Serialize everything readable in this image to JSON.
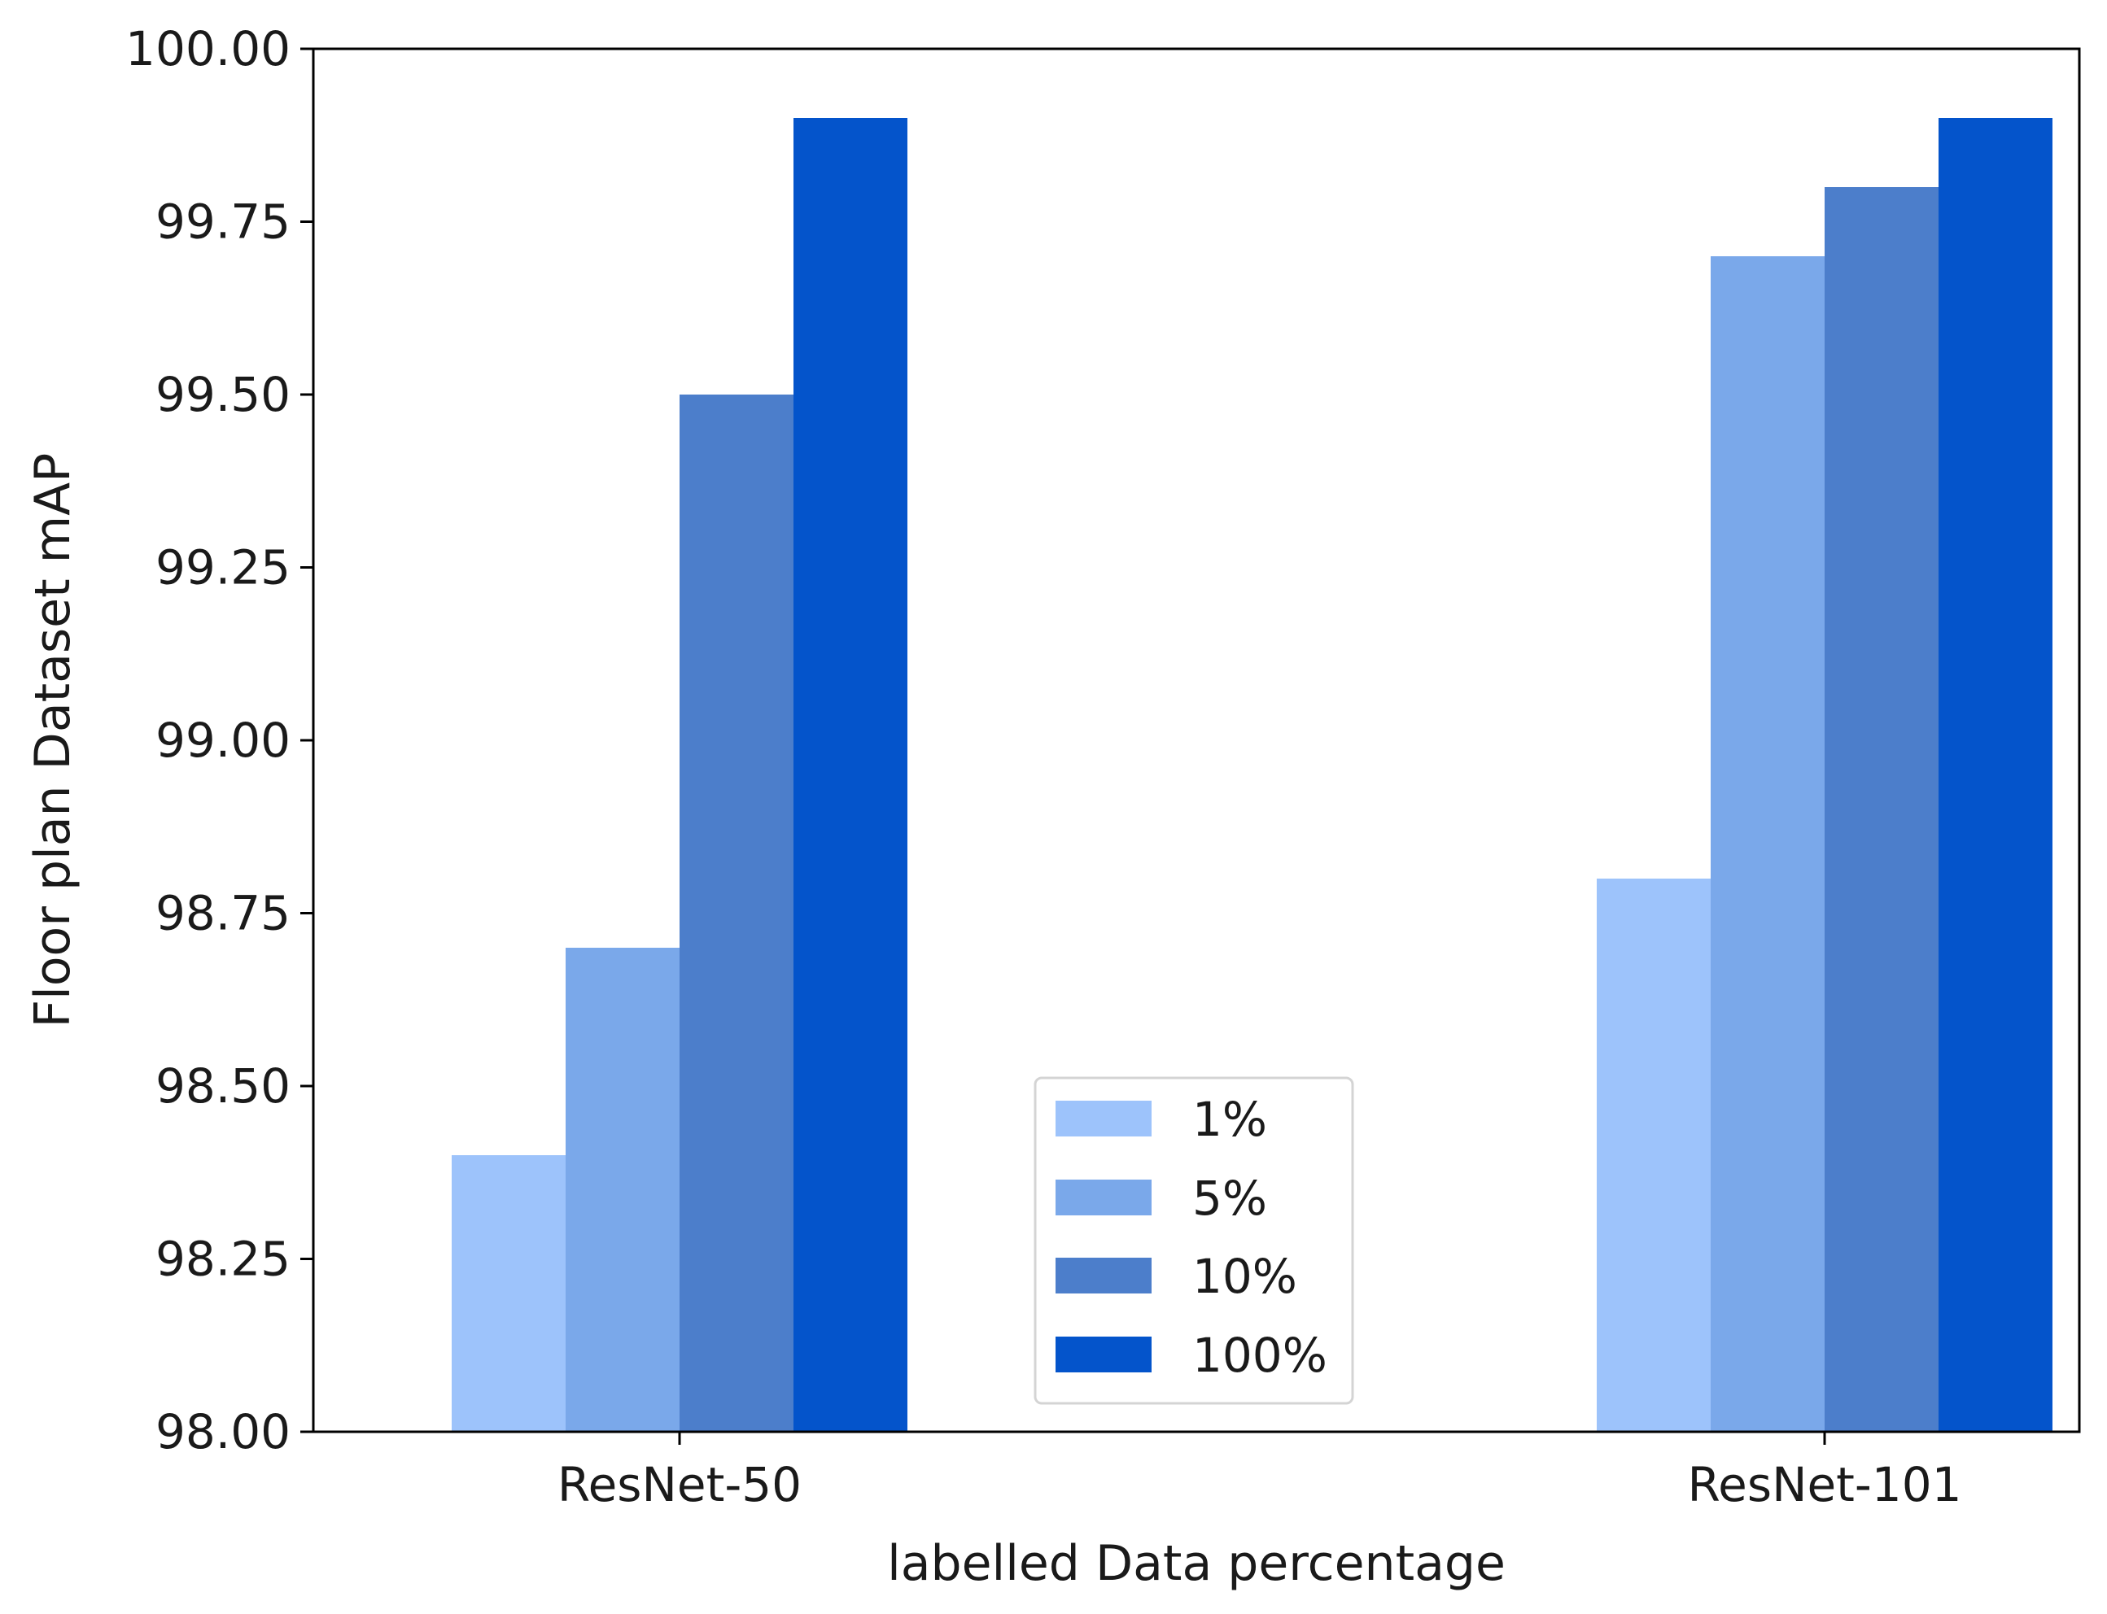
{
  "chart_data": {
    "type": "bar",
    "title": "",
    "xlabel": "labelled Data percentage",
    "ylabel": "Floor plan Dataset mAP",
    "ylim": [
      98.0,
      100.0
    ],
    "y_ticks": [
      "98.00",
      "98.25",
      "98.50",
      "98.75",
      "99.00",
      "99.25",
      "99.50",
      "99.75",
      "100.00"
    ],
    "y_tick_values": [
      98.0,
      98.25,
      98.5,
      98.75,
      99.0,
      99.25,
      99.5,
      99.75,
      100.0
    ],
    "categories": [
      "ResNet-50",
      "ResNet-101"
    ],
    "series": [
      {
        "name": "1%",
        "values": [
          98.4,
          98.8
        ],
        "color": "#9dc3fb"
      },
      {
        "name": "5%",
        "values": [
          98.7,
          99.7
        ],
        "color": "#7aa8ea"
      },
      {
        "name": "10%",
        "values": [
          99.5,
          99.8
        ],
        "color": "#4c7ecb"
      },
      {
        "name": "100%",
        "values": [
          99.9,
          99.9
        ],
        "color": "#0454cb"
      }
    ],
    "legend_position": "bottom-center",
    "grid": false
  }
}
